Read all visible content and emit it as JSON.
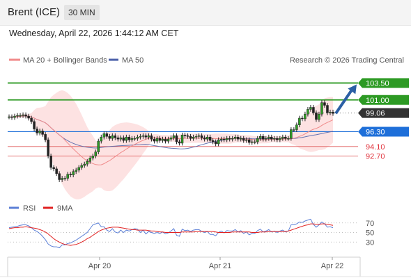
{
  "header": {
    "instrument": "Brent (ICE)",
    "interval": "30 MIN"
  },
  "timestamp": "Wednesday, April 22, 2026 1:44:12 AM CET",
  "legend": {
    "ma20": "MA 20 + Bollinger Bands",
    "ma50": "MA 50",
    "rsi": "RSI",
    "ma9": "9MA"
  },
  "credit": "Research © 2026 Trading Central",
  "colors": {
    "up": "#2d9a24",
    "down": "#e0303a",
    "candle": "#222222",
    "ma20": "#f08a8a",
    "bands": "#fde0e0",
    "ma50": "#4a5fa8",
    "rsi": "#5b7fd6",
    "ma9": "#e02020",
    "blue_level": "#1e6fd9",
    "green_level": "#2d9a24",
    "red_level": "#e05a5a",
    "arrow": "#2b5fa5"
  },
  "chart_data": [
    {
      "type": "candlestick",
      "title": "Brent (ICE)",
      "x_ticks": [
        "Apr 20",
        "Apr 21",
        "Apr 22"
      ],
      "ylim": [
        87.5,
        105.5
      ],
      "last_price": 99.06,
      "levels": [
        {
          "label": "103.50",
          "value": 103.5,
          "kind": "resistance"
        },
        {
          "label": "101.00",
          "value": 101.0,
          "kind": "resistance"
        },
        {
          "label": "99.06",
          "value": 99.06,
          "kind": "last"
        },
        {
          "label": "96.30",
          "value": 96.3,
          "kind": "pivot"
        },
        {
          "label": "94.10",
          "value": 94.1,
          "kind": "support"
        },
        {
          "label": "92.70",
          "value": 92.7,
          "kind": "support"
        }
      ],
      "close": [
        98.5,
        98.4,
        98.6,
        98.7,
        98.7,
        98.8,
        98.6,
        98.3,
        97.8,
        96.7,
        96.1,
        96.4,
        95.9,
        95.1,
        92.7,
        91.0,
        90.8,
        90.1,
        89.2,
        89.4,
        89.4,
        90.0,
        89.9,
        90.4,
        90.6,
        91.0,
        91.3,
        91.5,
        91.9,
        92.4,
        92.7,
        93.3,
        94.9,
        95.5,
        96.0,
        95.6,
        95.3,
        95.7,
        95.4,
        95.2,
        95.4,
        95.0,
        95.5,
        95.1,
        95.3,
        95.3,
        95.5,
        95.6,
        95.7,
        95.5,
        95.7,
        95.2,
        94.9,
        95.3,
        95.0,
        95.2,
        94.9,
        95.2,
        95.4,
        95.7,
        94.8,
        94.6,
        95.8,
        95.7,
        95.6,
        95.3,
        95.5,
        95.6,
        95.7,
        95.4,
        95.2,
        95.5,
        95.0,
        94.8,
        94.5,
        95.1,
        95.2,
        95.1,
        95.3,
        95.2,
        95.3,
        95.5,
        95.2,
        95.3,
        95.0,
        95.1,
        94.7,
        94.8,
        94.8,
        95.3,
        95.6,
        95.2,
        95.3,
        95.5,
        95.2,
        95.3,
        95.1,
        95.3,
        95.5,
        95.3,
        95.3,
        96.6,
        96.6,
        97.3,
        98.3,
        98.2,
        98.9,
        99.6,
        99.9,
        99.1,
        98.1,
        98.9,
        100.6,
        100.2,
        99.1,
        99.2,
        99.0
      ]
    },
    {
      "type": "line",
      "title": "RSI",
      "x_ticks": [
        "Apr 20",
        "Apr 21",
        "Apr 22"
      ],
      "ylim": [
        10,
        90
      ],
      "gridlines": [
        70,
        50,
        30
      ],
      "series": [
        {
          "name": "RSI",
          "values": [
            60,
            61,
            62,
            63,
            65,
            66,
            66,
            64,
            60,
            55,
            52,
            48,
            42,
            35,
            26,
            22,
            20,
            20,
            18,
            24,
            24,
            27,
            28,
            31,
            34,
            38,
            42,
            46,
            50,
            58,
            66,
            68,
            70,
            62,
            62,
            55,
            52,
            58,
            51,
            49,
            55,
            50,
            55,
            53,
            56,
            58,
            57,
            50,
            55,
            47,
            52,
            50,
            48,
            50,
            48,
            51,
            47,
            49,
            53,
            58,
            44,
            42,
            57,
            54,
            55,
            52,
            55,
            56,
            56,
            52,
            50,
            52,
            46,
            46,
            43,
            50,
            53,
            49,
            54,
            53,
            53,
            56,
            51,
            54,
            48,
            51,
            45,
            48,
            48,
            54,
            57,
            51,
            53,
            56,
            51,
            53,
            50,
            53,
            55,
            51,
            53,
            66,
            66,
            68,
            72,
            71,
            74,
            76,
            78,
            67,
            61,
            66,
            72,
            68,
            61,
            62,
            60
          ]
        },
        {
          "name": "9MA",
          "values": [
            58,
            59,
            60,
            60,
            61,
            61,
            62,
            61,
            60,
            59,
            58,
            56,
            54,
            51,
            47,
            42,
            37,
            33,
            30,
            27,
            25,
            24,
            23,
            24,
            25,
            27,
            30,
            33,
            37,
            40,
            44,
            48,
            52,
            55,
            57,
            59,
            60,
            61,
            61,
            61,
            60,
            59,
            58,
            57,
            56,
            56,
            55,
            55,
            55,
            55,
            54,
            53,
            53,
            52,
            51,
            51,
            50,
            50,
            50,
            50,
            50,
            50,
            51,
            51,
            51,
            51,
            51,
            52,
            52,
            52,
            52,
            52,
            52,
            52,
            51,
            50,
            50,
            50,
            50,
            50,
            51,
            51,
            51,
            51,
            51,
            51,
            51,
            50,
            50,
            50,
            51,
            51,
            51,
            52,
            52,
            52,
            52,
            52,
            52,
            52,
            53,
            55,
            57,
            59,
            61,
            63,
            65,
            66,
            68,
            68,
            67,
            67,
            68,
            68,
            67,
            66,
            65
          ]
        }
      ]
    }
  ]
}
